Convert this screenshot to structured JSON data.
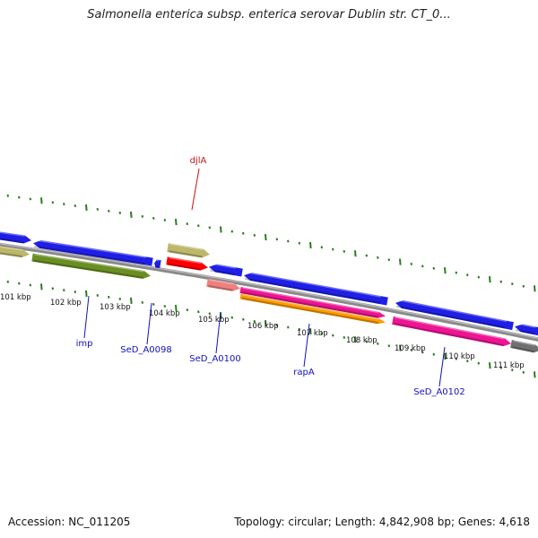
{
  "title": "Salmonella enterica subsp. enterica serovar Dublin str. CT_0...",
  "footer": {
    "accession": "Accession: NC_011205",
    "summary": "Topology: circular; Length: 4,842,908 bp; Genes: 4,618"
  },
  "colors": {
    "cds": "#1f1fe8",
    "gene_olive": "#6b8e23",
    "gene_khaki": "#bdb76b",
    "gene_pink": "#ee1493",
    "gene_orange": "#ff9c00",
    "gene_salmon": "#f08080",
    "gene_red": "#ff0000",
    "gene_gray": "#707070",
    "backbone": "#8a8a8a",
    "tick": "#2a7d1e",
    "label_blue": "#1010c0",
    "label_red": "#d01010"
  },
  "kbp_labels": [
    {
      "id": "k101",
      "text": "101 kbp"
    },
    {
      "id": "k102",
      "text": "102 kbp"
    },
    {
      "id": "k103",
      "text": "103 kbp"
    },
    {
      "id": "k104",
      "text": "104 kbp"
    },
    {
      "id": "k105",
      "text": "105 kbp"
    },
    {
      "id": "k106",
      "text": "106 kbp"
    },
    {
      "id": "k107",
      "text": "107 kbp"
    },
    {
      "id": "k108",
      "text": "108 kbp"
    },
    {
      "id": "k109",
      "text": "109 kbp"
    },
    {
      "id": "k110",
      "text": "110 kbp"
    },
    {
      "id": "k111",
      "text": "111 kbp"
    }
  ],
  "gene_labels": [
    {
      "id": "djlA",
      "text": "djlA",
      "color": "label_red"
    },
    {
      "id": "imp",
      "text": "imp",
      "color": "label_blue"
    },
    {
      "id": "SeD_A0098",
      "text": "SeD_A0098",
      "color": "label_blue"
    },
    {
      "id": "SeD_A0100",
      "text": "SeD_A0100",
      "color": "label_blue"
    },
    {
      "id": "rapA",
      "text": "rapA",
      "color": "label_blue"
    },
    {
      "id": "SeD_A0102",
      "text": "SeD_A0102",
      "color": "label_blue"
    }
  ]
}
